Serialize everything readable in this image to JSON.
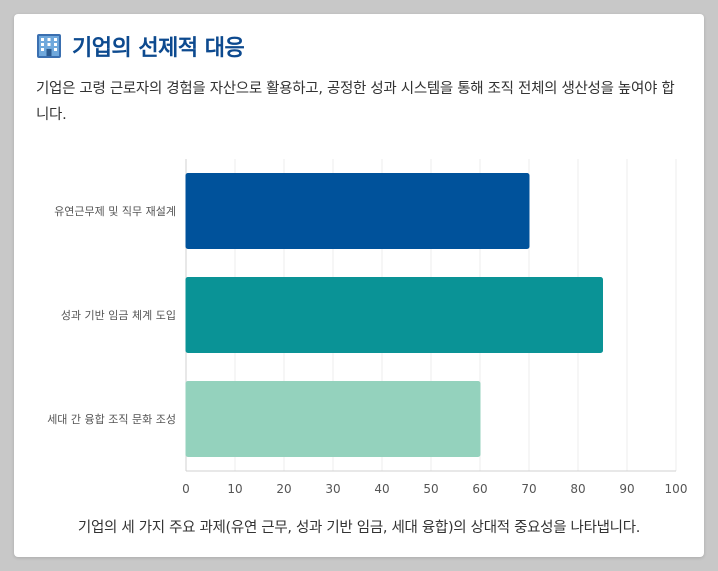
{
  "header": {
    "title": "기업의 선제적 대응",
    "icon": "building-icon"
  },
  "description": "기업은 고령 근로자의 경험을 자산으로 활용하고, 공정한 성과 시스템을 통해 조직 전체의 생산성을 높여야 합니다.",
  "caption": "기업의 세 가지 주요 과제(유연 근무, 성과 기반 임금, 세대 융합)의 상대적 중요성을 나타냅니다.",
  "chart_data": {
    "type": "bar",
    "orientation": "horizontal",
    "categories": [
      "유연근무제 및 직무 재설계",
      "성과 기반 임금 체계 도입",
      "세대 간 융합 조직 문화 조성"
    ],
    "values": [
      70,
      85,
      60
    ],
    "colors": [
      "#00529b",
      "#0a9396",
      "#94d2bd"
    ],
    "xlim": [
      0,
      100
    ],
    "xticks": [
      0,
      10,
      20,
      30,
      40,
      50,
      60,
      70,
      80,
      90,
      100
    ],
    "grid": true,
    "legend": "none"
  }
}
